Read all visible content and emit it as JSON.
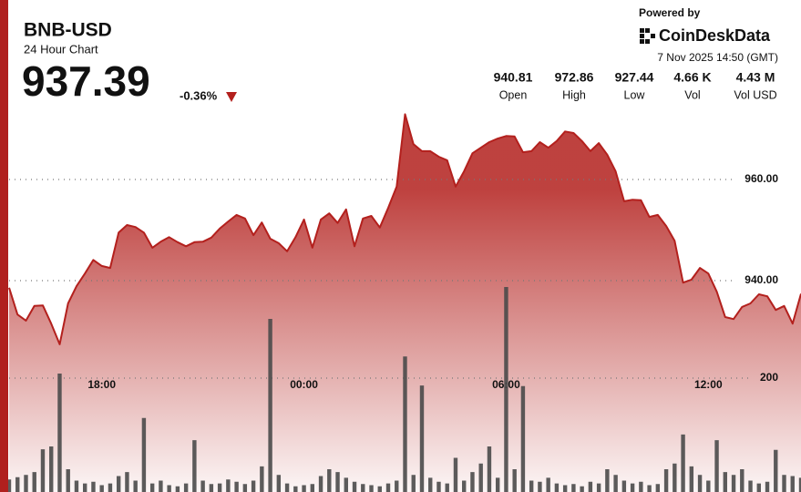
{
  "header": {
    "price": 937.39,
    "change": "-0.36%",
    "powered": "Powered by",
    "brand": "CoinDeskData",
    "timestamp": "7 Nov 2025 14:50 (GMT)",
    "stats": [
      {
        "value": 940.81,
        "label": "Open"
      },
      {
        "value": 972.86,
        "label": "High"
      },
      {
        "value": 927.44,
        "label": "Low"
      },
      {
        "value": "4.66 K",
        "label": "Vol"
      },
      {
        "value": "4.43 M",
        "label": "Vol USD"
      }
    ]
  },
  "chart_data": {
    "type": "line",
    "title": "BNB-USD",
    "subtitle": "24 Hour Chart",
    "color": "#b3201d",
    "grid": true,
    "x": [
      15.25,
      15.5,
      15.75,
      16,
      16.25,
      16.5,
      16.75,
      17,
      17.25,
      17.5,
      17.75,
      18,
      18.25,
      18.5,
      18.75,
      19,
      19.25,
      19.5,
      19.75,
      20,
      20.25,
      20.5,
      20.75,
      21,
      21.25,
      21.5,
      21.75,
      22,
      22.25,
      22.5,
      22.75,
      23,
      23.25,
      23.5,
      23.75,
      24,
      24.25,
      24.5,
      24.75,
      25,
      25.25,
      25.5,
      25.75,
      26,
      26.25,
      26.5,
      26.75,
      27,
      27.25,
      27.5,
      27.75,
      28,
      28.25,
      28.5,
      28.75,
      29,
      29.25,
      29.5,
      29.75,
      30,
      30.25,
      30.5,
      30.75,
      31,
      31.25,
      31.5,
      31.75,
      32,
      32.25,
      32.5,
      32.75,
      33,
      33.25,
      33.5,
      33.75,
      34,
      34.25,
      34.5,
      34.75,
      35,
      35.25,
      35.5,
      35.75,
      36,
      36.25,
      36.5,
      36.75,
      37,
      37.25,
      37.5,
      37.75,
      38,
      38.25,
      38.5,
      38.75
    ],
    "values": [
      938.6,
      933.3,
      932.1,
      935.0,
      935.1,
      931.5,
      927.4,
      935.5,
      938.9,
      941.4,
      944.1,
      942.9,
      942.5,
      949.5,
      951.0,
      950.6,
      949.5,
      946.5,
      947.7,
      948.6,
      947.6,
      946.8,
      947.6,
      947.7,
      948.5,
      950.3,
      951.7,
      953.0,
      952.3,
      949.0,
      951.5,
      948.3,
      947.4,
      945.8,
      948.6,
      952.1,
      946.5,
      952.1,
      953.3,
      951.4,
      954.1,
      946.8,
      952.3,
      952.8,
      950.5,
      954.4,
      958.6,
      972.9,
      967.0,
      965.6,
      965.6,
      964.5,
      963.8,
      958.6,
      961.6,
      965.2,
      966.3,
      967.4,
      968.1,
      968.6,
      968.5,
      965.4,
      965.6,
      967.4,
      966.3,
      967.6,
      969.5,
      969.2,
      967.6,
      965.6,
      967.2,
      964.9,
      961.6,
      955.7,
      956.0,
      955.9,
      952.6,
      953.0,
      950.8,
      947.9,
      939.6,
      940.2,
      942.5,
      941.4,
      937.8,
      932.8,
      932.4,
      934.8,
      935.5,
      937.3,
      936.9,
      934.2,
      935.0,
      931.5,
      937.4
    ],
    "volume": {
      "axis": "y2",
      "color": "#4a4a4a",
      "values": [
        22,
        26,
        30,
        35,
        75,
        80,
        208,
        40,
        20,
        15,
        18,
        12,
        15,
        28,
        35,
        20,
        130,
        15,
        20,
        12,
        10,
        15,
        91,
        20,
        14,
        15,
        22,
        18,
        14,
        20,
        45,
        304,
        30,
        15,
        10,
        12,
        14,
        28,
        40,
        35,
        25,
        18,
        14,
        12,
        10,
        15,
        20,
        238,
        30,
        187,
        25,
        18,
        15,
        60,
        20,
        35,
        50,
        80,
        25,
        360,
        40,
        186,
        20,
        18,
        25,
        15,
        12,
        14,
        10,
        18,
        15,
        40,
        30,
        20,
        15,
        18,
        12,
        14,
        40,
        50,
        101,
        45,
        30,
        20,
        91,
        35,
        30,
        40,
        20,
        15,
        18,
        74,
        30,
        28,
        25
      ]
    },
    "xlim": [
      15.25,
      38.75
    ],
    "xticks": [
      {
        "value": 18,
        "label": "18:00"
      },
      {
        "value": 24,
        "label": "00:00"
      },
      {
        "value": 30,
        "label": "06:00"
      },
      {
        "value": 36,
        "label": "12:00"
      }
    ],
    "ylim": [
      898.2,
      995.5
    ],
    "yticks": [
      {
        "value": 940,
        "label": "940.00"
      },
      {
        "value": 960,
        "label": "960.00"
      }
    ],
    "y2lim": [
      0,
      864
    ],
    "y2ticks": [
      200
    ]
  }
}
